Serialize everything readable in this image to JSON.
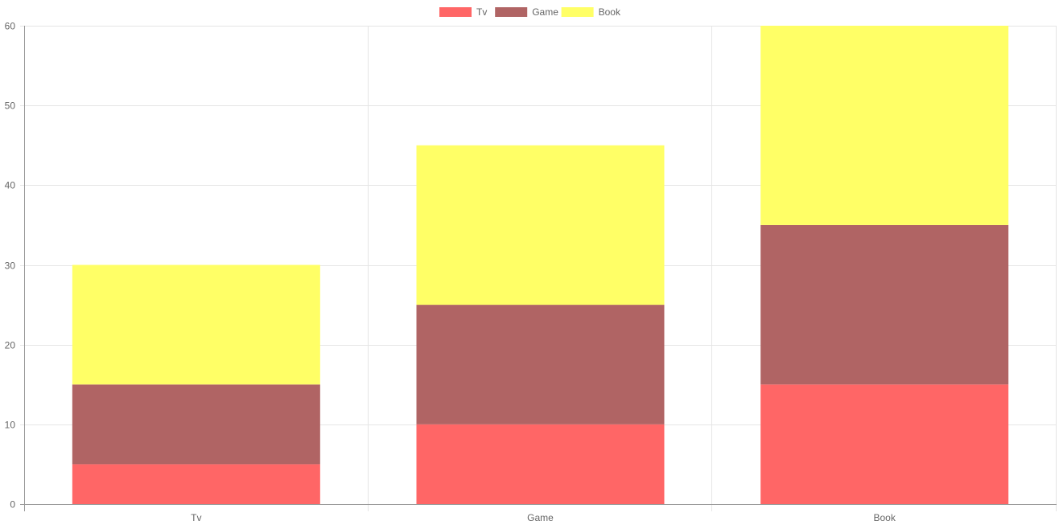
{
  "chart_data": {
    "type": "bar",
    "stacked": true,
    "categories": [
      "Tv",
      "Game",
      "Book"
    ],
    "series": [
      {
        "name": "Tv",
        "values": [
          5,
          10,
          15
        ],
        "color": "#ff6666"
      },
      {
        "name": "Game",
        "values": [
          10,
          15,
          20
        ],
        "color": "#b06464"
      },
      {
        "name": "Book",
        "values": [
          15,
          20,
          25
        ],
        "color": "#ffff66"
      }
    ],
    "title": "",
    "xlabel": "",
    "ylabel": "",
    "ylim": [
      0,
      60
    ],
    "yticks": [
      "0",
      "10",
      "20",
      "30",
      "40",
      "50",
      "60"
    ],
    "grid": true,
    "legend_position": "top-center",
    "grid_color": "#e5e5e5",
    "axis_color": "#999999",
    "label_color": "#666666"
  }
}
